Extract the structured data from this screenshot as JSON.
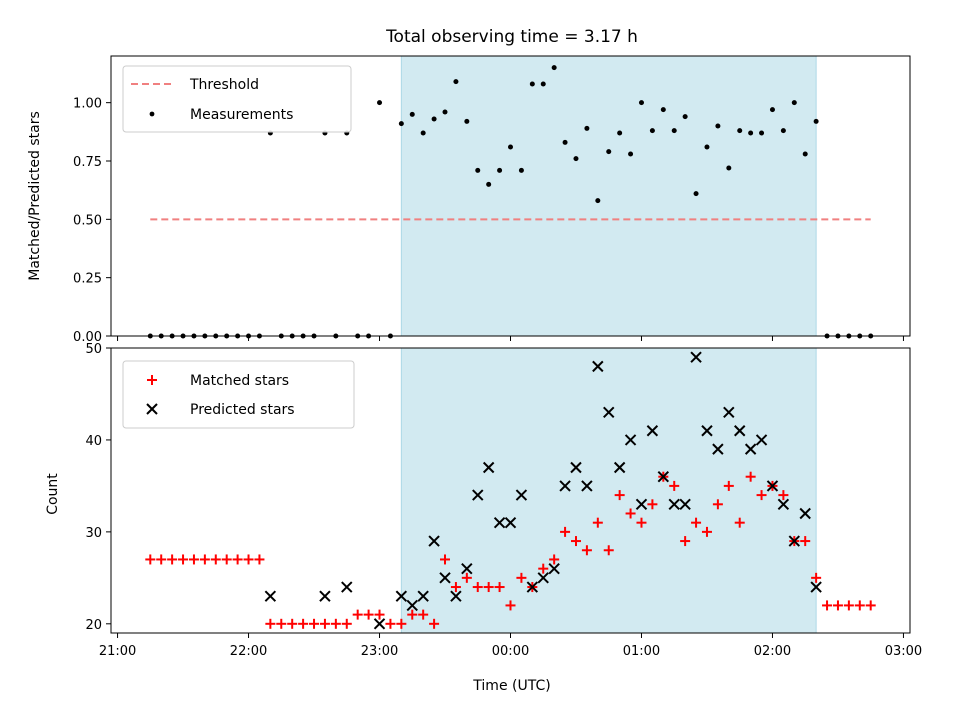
{
  "colors": {
    "threshold": "#f08080",
    "measurement": "#000000",
    "matched": "#ff0000",
    "predicted": "#000000",
    "observing_window": "#add8e6"
  },
  "chart_data": [
    {
      "type": "scatter",
      "title": "Total observing time = 3.17 h",
      "xlabel": "",
      "ylabel": "Matched/Predicted stars",
      "x_ticks": [
        "21:00",
        "22:00",
        "23:00",
        "00:00",
        "01:00",
        "02:00",
        "03:00"
      ],
      "y_ticks": [
        "0.00",
        "0.25",
        "0.50",
        "0.75",
        "1.00"
      ],
      "ylim": [
        0,
        1.2
      ],
      "grid": false,
      "legend_position": "top-left",
      "observing_window": {
        "start": "23:10",
        "end": "02:20"
      },
      "threshold": {
        "name": "Threshold",
        "value": 0.5,
        "x_start": "21:15",
        "x_end": "02:45"
      },
      "series": [
        {
          "name": "Measurements",
          "x": [
            "21:15",
            "21:20",
            "21:25",
            "21:30",
            "21:35",
            "21:40",
            "21:45",
            "21:50",
            "21:55",
            "22:00",
            "22:05",
            "22:10",
            "22:15",
            "22:20",
            "22:25",
            "22:30",
            "22:35",
            "22:40",
            "22:45",
            "22:50",
            "22:55",
            "23:00",
            "23:05",
            "23:10",
            "23:15",
            "23:20",
            "23:25",
            "23:30",
            "23:35",
            "23:40",
            "23:45",
            "23:50",
            "23:55",
            "00:00",
            "00:05",
            "00:10",
            "00:15",
            "00:20",
            "00:25",
            "00:30",
            "00:35",
            "00:40",
            "00:45",
            "00:50",
            "00:55",
            "01:00",
            "01:05",
            "01:10",
            "01:15",
            "01:20",
            "01:25",
            "01:30",
            "01:35",
            "01:40",
            "01:45",
            "01:50",
            "01:55",
            "02:00",
            "02:05",
            "02:10",
            "02:15",
            "02:20",
            "02:25",
            "02:30",
            "02:35",
            "02:40",
            "02:45"
          ],
          "y": [
            0,
            0,
            0,
            0,
            0,
            0,
            0,
            0,
            0,
            0,
            0,
            0.87,
            0,
            0,
            0,
            0,
            0.87,
            0,
            0.87,
            0,
            0,
            1.0,
            0,
            0.91,
            0.95,
            0.87,
            0.93,
            0.96,
            1.09,
            0.92,
            0.71,
            0.65,
            0.71,
            0.81,
            0.71,
            1.08,
            1.08,
            1.15,
            0.83,
            0.76,
            0.89,
            0.58,
            0.79,
            0.87,
            0.78,
            1.0,
            0.88,
            0.97,
            0.88,
            0.94,
            0.61,
            0.81,
            0.9,
            0.72,
            0.88,
            0.87,
            0.87,
            0.97,
            0.88,
            1.0,
            0.78,
            0.92,
            0,
            0,
            0,
            0,
            0
          ]
        }
      ]
    },
    {
      "type": "scatter",
      "title": "",
      "xlabel": "Time (UTC)",
      "ylabel": "Count",
      "x_ticks": [
        "21:00",
        "22:00",
        "23:00",
        "00:00",
        "01:00",
        "02:00",
        "03:00"
      ],
      "y_ticks": [
        "20",
        "30",
        "40",
        "50"
      ],
      "ylim": [
        19,
        50
      ],
      "grid": false,
      "legend_position": "top-left",
      "observing_window": {
        "start": "23:10",
        "end": "02:20"
      },
      "series": [
        {
          "name": "Matched stars",
          "x": [
            "21:15",
            "21:20",
            "21:25",
            "21:30",
            "21:35",
            "21:40",
            "21:45",
            "21:50",
            "21:55",
            "22:00",
            "22:05",
            "22:10",
            "22:15",
            "22:20",
            "22:25",
            "22:30",
            "22:35",
            "22:40",
            "22:45",
            "22:50",
            "22:55",
            "23:00",
            "23:05",
            "23:10",
            "23:15",
            "23:20",
            "23:25",
            "23:30",
            "23:35",
            "23:40",
            "23:45",
            "23:50",
            "23:55",
            "00:00",
            "00:05",
            "00:10",
            "00:15",
            "00:20",
            "00:25",
            "00:30",
            "00:35",
            "00:40",
            "00:45",
            "00:50",
            "00:55",
            "01:00",
            "01:05",
            "01:10",
            "01:15",
            "01:20",
            "01:25",
            "01:30",
            "01:35",
            "01:40",
            "01:45",
            "01:50",
            "01:55",
            "02:00",
            "02:05",
            "02:10",
            "02:15",
            "02:20",
            "02:25",
            "02:30",
            "02:35",
            "02:40",
            "02:45"
          ],
          "y": [
            27,
            27,
            27,
            27,
            27,
            27,
            27,
            27,
            27,
            27,
            27,
            20,
            20,
            20,
            20,
            20,
            20,
            20,
            20,
            21,
            21,
            21,
            20,
            20,
            21,
            21,
            20,
            27,
            24,
            25,
            24,
            24,
            24,
            22,
            25,
            24,
            26,
            27,
            30,
            29,
            28,
            31,
            28,
            34,
            32,
            31,
            33,
            36,
            35,
            29,
            31,
            30,
            33,
            35,
            31,
            36,
            34,
            35,
            34,
            29,
            29,
            25,
            22,
            22,
            22,
            22,
            22
          ]
        },
        {
          "name": "Predicted stars",
          "x": [
            "22:10",
            "22:35",
            "22:45",
            "23:00",
            "23:10",
            "23:15",
            "23:20",
            "23:25",
            "23:30",
            "23:35",
            "23:40",
            "23:45",
            "23:50",
            "23:55",
            "00:00",
            "00:05",
            "00:10",
            "00:15",
            "00:20",
            "00:25",
            "00:30",
            "00:35",
            "00:40",
            "00:45",
            "00:50",
            "00:55",
            "01:00",
            "01:05",
            "01:10",
            "01:15",
            "01:20",
            "01:25",
            "01:30",
            "01:35",
            "01:40",
            "01:45",
            "01:50",
            "01:55",
            "02:00",
            "02:05",
            "02:10",
            "02:15",
            "02:20"
          ],
          "y": [
            23,
            23,
            24,
            20,
            23,
            22,
            23,
            29,
            25,
            23,
            26,
            34,
            37,
            31,
            31,
            34,
            24,
            25,
            26,
            35,
            37,
            35,
            48,
            43,
            37,
            40,
            33,
            41,
            36,
            33,
            33,
            49,
            41,
            39,
            43,
            41,
            39,
            40,
            35,
            33,
            29,
            32,
            24
          ]
        }
      ]
    }
  ]
}
